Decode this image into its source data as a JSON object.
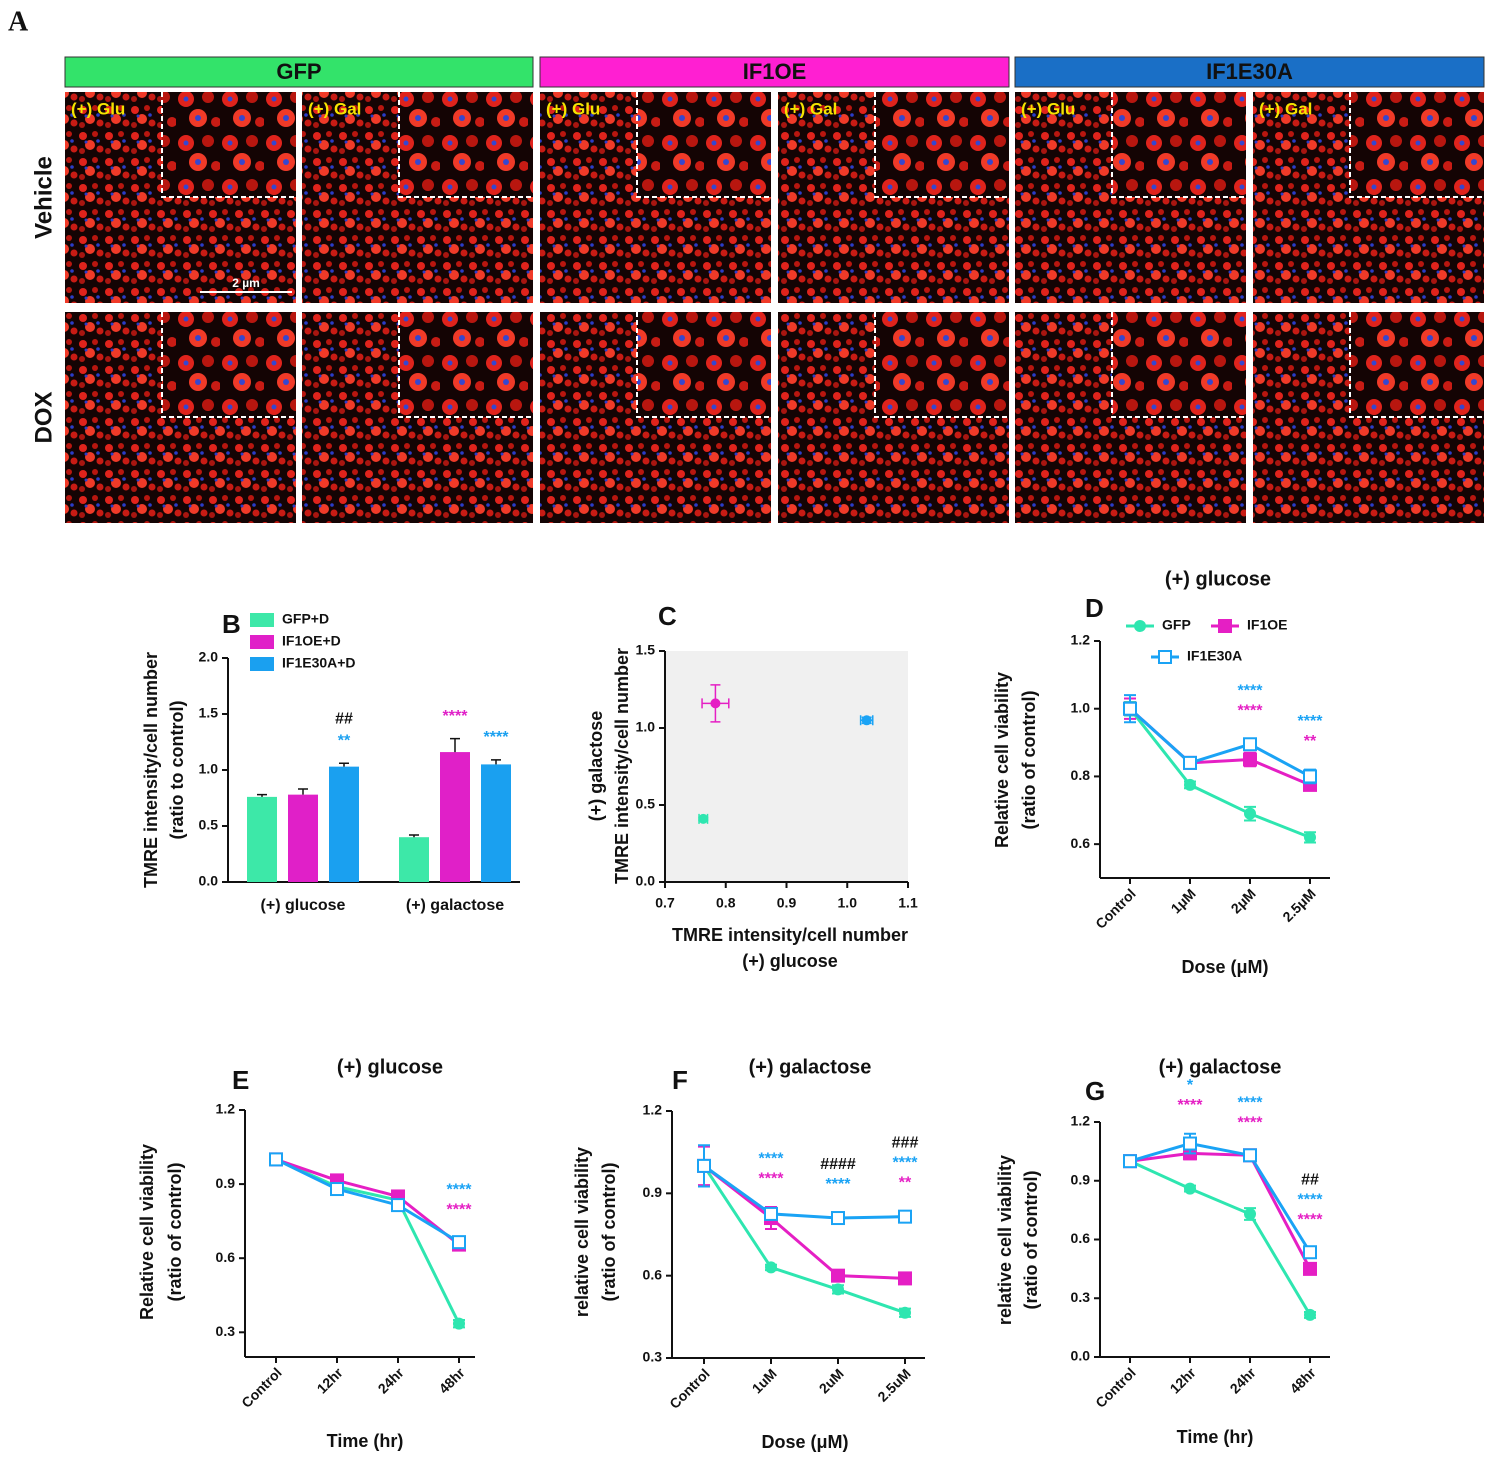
{
  "panel_a": {
    "letter": "A",
    "groups": [
      "GFP",
      "IF1OE",
      "IF1E30A"
    ],
    "group_colors": [
      "#33e36a",
      "#ff1fd2",
      "#1a6fc6"
    ],
    "rows": [
      "Vehicle",
      "DOX"
    ],
    "conditions": [
      "(+) Glu",
      "(+) Gal"
    ],
    "scale_bar": "2 µm"
  },
  "chart_data": [
    {
      "type": "bar",
      "panel": "B",
      "ylabel": [
        "TMRE intensity/cell number",
        "(ratio to control)"
      ],
      "categories": [
        "(+) glucose",
        "(+) galactose"
      ],
      "series": [
        {
          "name": "GFP+D",
          "color": "#3de8a8",
          "values": [
            0.76,
            0.4
          ],
          "error": [
            0.02,
            0.02
          ],
          "stars": [
            null,
            null
          ]
        },
        {
          "name": "IF1OE+D",
          "color": "#e020c8",
          "values": [
            0.78,
            1.16
          ],
          "error": [
            0.05,
            0.12
          ],
          "stars": [
            null,
            "****"
          ]
        },
        {
          "name": "IF1E30A+D",
          "color": "#1aa0f0",
          "values": [
            1.03,
            1.05
          ],
          "error": [
            0.03,
            0.04
          ],
          "stars": [
            "**",
            "****"
          ]
        }
      ],
      "hashes": [
        "##",
        null
      ],
      "ylim": [
        0,
        2
      ],
      "yticks": [
        {
          "value": 0,
          "label": "0.0"
        },
        0.5,
        {
          "value": 1,
          "label": "1.0"
        },
        1.5,
        {
          "value": 2,
          "label": "2.0"
        }
      ]
    },
    {
      "type": "scatter",
      "panel": "C",
      "xlabel": [
        "TMRE intensity/cell number",
        "(+) glucose"
      ],
      "ylabel": [
        "(+) galactose",
        "TMRE intensity/cell number"
      ],
      "background": "#f0f0f0",
      "points": {
        "x": [
          0.763,
          0.783,
          1.032
        ],
        "y": [
          0.41,
          1.16,
          1.05
        ],
        "xerr": [
          0.007,
          0.022,
          0.01
        ],
        "yerr": [
          0.01,
          0.12,
          0.02
        ],
        "colors": [
          "#2ee6b0",
          "#e51fc4",
          "#1aa3f5"
        ]
      },
      "xlim": [
        0.7,
        1.1
      ],
      "xticks": [
        0.7,
        0.8,
        0.9,
        {
          "value": 1,
          "label": "1.0"
        },
        1.1
      ],
      "ylim": [
        0,
        1.5
      ],
      "yticks": [
        {
          "value": 0,
          "label": "0.0"
        },
        0.5,
        {
          "value": 1,
          "label": "1.0"
        },
        1.5
      ]
    },
    {
      "type": "line",
      "panel": "D",
      "title": "(+) glucose",
      "xlabel": "Dose (μM)",
      "ylabel": [
        "Relative cell viability",
        "(ratio of control)"
      ],
      "categories": [
        "Control",
        "1μM",
        "2μM",
        "2.5μM"
      ],
      "legend": true,
      "series": [
        {
          "name": "GFP",
          "color": "#2ee6b0",
          "marker": "circle",
          "values": [
            1.0,
            0.775,
            0.69,
            0.62
          ],
          "error": [
            0.02,
            0.01,
            0.02,
            0.015
          ],
          "stars": [
            null,
            null,
            null,
            null
          ]
        },
        {
          "name": "IF1OE",
          "color": "#e51fc4",
          "marker": "square",
          "values": [
            1.0,
            0.84,
            0.85,
            0.775
          ],
          "error": [
            0.03,
            0.01,
            0.02,
            0.015
          ],
          "stars": [
            null,
            null,
            "****",
            "**"
          ]
        },
        {
          "name": "IF1E30A",
          "color": "#1aa3f5",
          "marker": "open-square",
          "values": [
            1.0,
            0.84,
            0.895,
            0.8
          ],
          "error": [
            0.04,
            0.01,
            0.015,
            0.02
          ],
          "stars": [
            null,
            null,
            "****",
            "****"
          ]
        }
      ],
      "hashes": [
        null,
        null,
        null,
        null
      ],
      "ylim": [
        0.5,
        1.2
      ],
      "yticks": [
        0.6,
        0.8,
        {
          "value": 1,
          "label": "1.0"
        },
        1.2
      ]
    },
    {
      "type": "line",
      "panel": "E",
      "title": "(+) glucose",
      "xlabel": "Time (hr)",
      "ylabel": [
        "Relative cell viability",
        "(ratio of control)"
      ],
      "categories": [
        "Control",
        "12hr",
        "24hr",
        "48hr"
      ],
      "legend": false,
      "series": [
        {
          "name": "GFP",
          "color": "#2ee6b0",
          "marker": "circle",
          "values": [
            1.0,
            0.89,
            0.835,
            0.335
          ],
          "error": [
            0.01,
            0.02,
            0.015,
            0.015
          ],
          "stars": [
            null,
            null,
            null,
            null
          ]
        },
        {
          "name": "IF1OE",
          "color": "#e51fc4",
          "marker": "square",
          "values": [
            1.0,
            0.915,
            0.85,
            0.655
          ],
          "error": [
            0.01,
            0.015,
            0.015,
            0.015
          ],
          "stars": [
            null,
            null,
            null,
            "****"
          ]
        },
        {
          "name": "IF1E30A",
          "color": "#1aa3f5",
          "marker": "open-square",
          "values": [
            1.0,
            0.88,
            0.815,
            0.665
          ],
          "error": [
            0.01,
            0.015,
            0.015,
            0.015
          ],
          "stars": [
            null,
            null,
            null,
            "****"
          ]
        }
      ],
      "hashes": [
        null,
        null,
        null,
        null
      ],
      "ylim": [
        0.2,
        1.2
      ],
      "yticks": [
        0.3,
        0.6,
        0.9,
        1.2
      ]
    },
    {
      "type": "line",
      "panel": "F",
      "title": "(+) galactose",
      "xlabel": "Dose (μM)",
      "ylabel": [
        "relative cell viability",
        "(ratio of control)"
      ],
      "categories": [
        "Control",
        "1uM",
        "2uM",
        "2.5uM"
      ],
      "legend": false,
      "series": [
        {
          "name": "GFP",
          "color": "#2ee6b0",
          "marker": "circle",
          "values": [
            1.0,
            0.63,
            0.55,
            0.465
          ],
          "error": [
            0.02,
            0.01,
            0.015,
            0.015
          ],
          "stars": [
            null,
            null,
            null,
            null
          ]
        },
        {
          "name": "IF1OE",
          "color": "#e51fc4",
          "marker": "square",
          "values": [
            1.0,
            0.81,
            0.6,
            0.59
          ],
          "error": [
            0.07,
            0.04,
            0.01,
            0.01
          ],
          "stars": [
            null,
            "****",
            null,
            "**"
          ]
        },
        {
          "name": "IF1E30A",
          "color": "#1aa3f5",
          "marker": "open-square",
          "values": [
            1.0,
            0.825,
            0.81,
            0.815
          ],
          "error": [
            0.075,
            0.02,
            0.02,
            0.02
          ],
          "stars": [
            null,
            "****",
            "****",
            "****"
          ]
        }
      ],
      "hashes": [
        null,
        null,
        "####",
        "###"
      ],
      "ylim": [
        0.3,
        1.2
      ],
      "yticks": [
        0.3,
        0.6,
        0.9,
        1.2
      ]
    },
    {
      "type": "line",
      "panel": "G",
      "title": "(+) galactose",
      "xlabel": "Time (hr)",
      "ylabel": [
        "relative cell viability",
        "(ratio of control)"
      ],
      "categories": [
        "Control",
        "12hr",
        "24hr",
        "48hr"
      ],
      "legend": false,
      "series": [
        {
          "name": "GFP",
          "color": "#2ee6b0",
          "marker": "circle",
          "values": [
            1.0,
            0.86,
            0.73,
            0.215
          ],
          "error": [
            0.02,
            0.015,
            0.03,
            0.015
          ],
          "stars": [
            null,
            null,
            null,
            null
          ]
        },
        {
          "name": "IF1OE",
          "color": "#e51fc4",
          "marker": "square",
          "values": [
            1.0,
            1.04,
            1.03,
            0.45
          ],
          "error": [
            0.02,
            0.03,
            0.02,
            0.02
          ],
          "stars": [
            null,
            "****",
            "****",
            "****"
          ]
        },
        {
          "name": "IF1E30A",
          "color": "#1aa3f5",
          "marker": "open-square",
          "values": [
            1.0,
            1.09,
            1.03,
            0.535
          ],
          "error": [
            0.02,
            0.05,
            0.02,
            0.02
          ],
          "stars": [
            null,
            "*",
            "****",
            "****"
          ]
        }
      ],
      "hashes": [
        null,
        null,
        null,
        "##"
      ],
      "ylim": [
        0,
        1.2
      ],
      "yticks": [
        {
          "value": 0,
          "label": "0.0"
        },
        0.3,
        0.6,
        0.9,
        1.2
      ]
    }
  ]
}
